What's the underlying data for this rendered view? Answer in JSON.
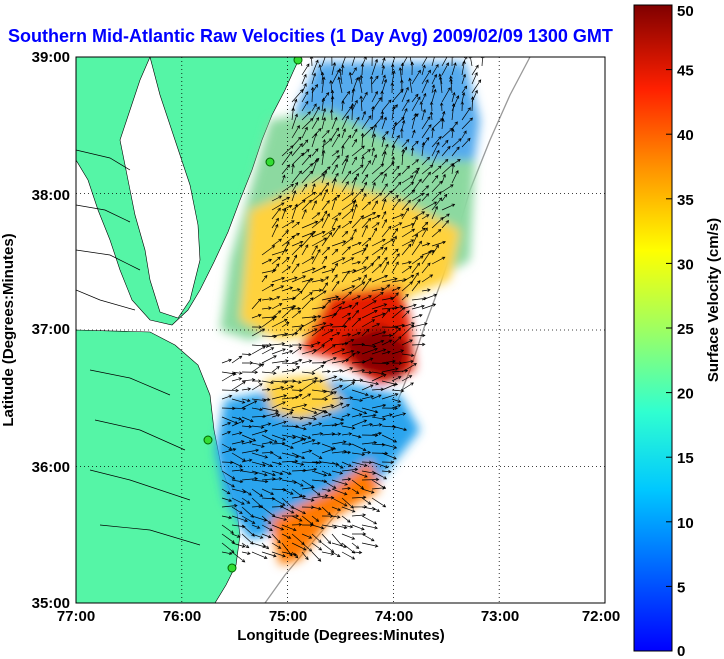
{
  "title": "Southern Mid-Atlantic Raw Velocities (1 Day Avg) 2009/02/09 1300 GMT",
  "map": {
    "x_label": "Longitude (Degrees:Minutes)",
    "y_label": "Latitude (Degrees:Minutes)",
    "x_ticks": [
      "77:00",
      "76:00",
      "75:00",
      "74:00",
      "73:00",
      "72:00"
    ],
    "y_ticks": [
      "39:00",
      "38:00",
      "37:00",
      "36:00",
      "35:00"
    ],
    "lon_range": [
      -77,
      -72
    ],
    "lat_range": [
      35,
      39
    ],
    "land_color": "#55f5a6",
    "grid": true
  },
  "colorbar": {
    "label": "Surface Velocity (cm/s)",
    "ticks": [
      "50",
      "45",
      "40",
      "35",
      "30",
      "25",
      "20",
      "15",
      "10",
      "5",
      "0"
    ],
    "range": [
      0,
      50
    ],
    "colormap": "jet"
  }
}
